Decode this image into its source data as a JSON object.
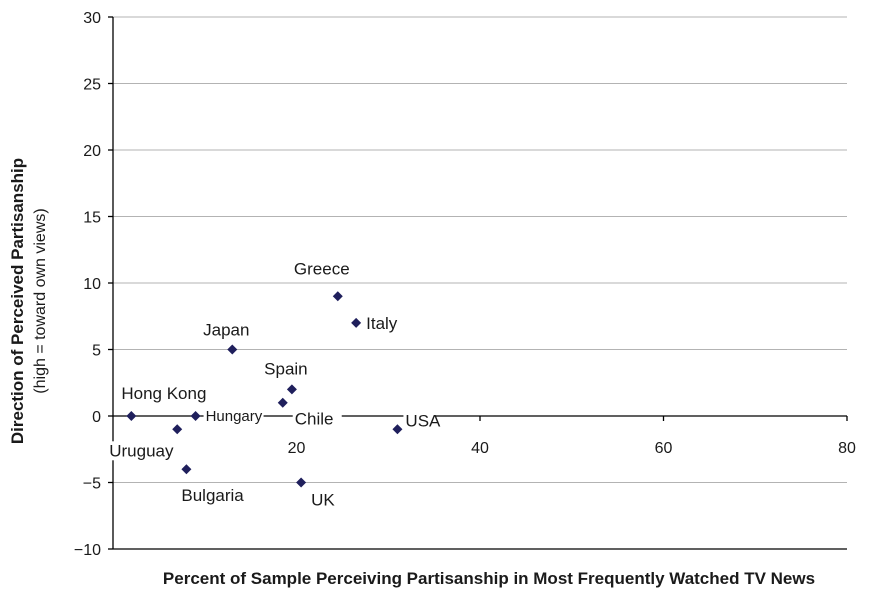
{
  "chart_data": {
    "type": "scatter",
    "title": "",
    "xlabel": "Percent of Sample Perceiving Partisanship in Most Frequently Watched TV News",
    "ylabel": "Direction of Perceived Partisanship",
    "ylabel_sub": "(high = toward own views)",
    "xlim": [
      0,
      80
    ],
    "ylim": [
      -10,
      30
    ],
    "x_ticks": [
      20,
      40,
      60,
      80
    ],
    "x_tick_labels": [
      "20",
      "40",
      "60",
      "80"
    ],
    "y_ticks": [
      -10,
      -5,
      0,
      5,
      10,
      15,
      20,
      25,
      30
    ],
    "y_tick_labels": [
      "−10",
      "−5",
      "0",
      "5",
      "10",
      "15",
      "20",
      "25",
      "30"
    ],
    "grid": true,
    "marker_color": "#1f1f5c",
    "points": [
      {
        "label": "Greece",
        "x": 24.5,
        "y": 9
      },
      {
        "label": "Italy",
        "x": 26.5,
        "y": 7
      },
      {
        "label": "Japan",
        "x": 13,
        "y": 5
      },
      {
        "label": "Spain",
        "x": 19.5,
        "y": 2
      },
      {
        "label": "Chile",
        "x": 18.5,
        "y": 1
      },
      {
        "label": "Hong Kong",
        "x": 2,
        "y": 0
      },
      {
        "label": "Hungary",
        "x": 9,
        "y": 0
      },
      {
        "label": "USA",
        "x": 31,
        "y": -1
      },
      {
        "label": "Uruguay",
        "x": 7,
        "y": -1
      },
      {
        "label": "Bulgaria",
        "x": 8,
        "y": -4
      },
      {
        "label": "UK",
        "x": 20.5,
        "y": -5
      }
    ]
  }
}
